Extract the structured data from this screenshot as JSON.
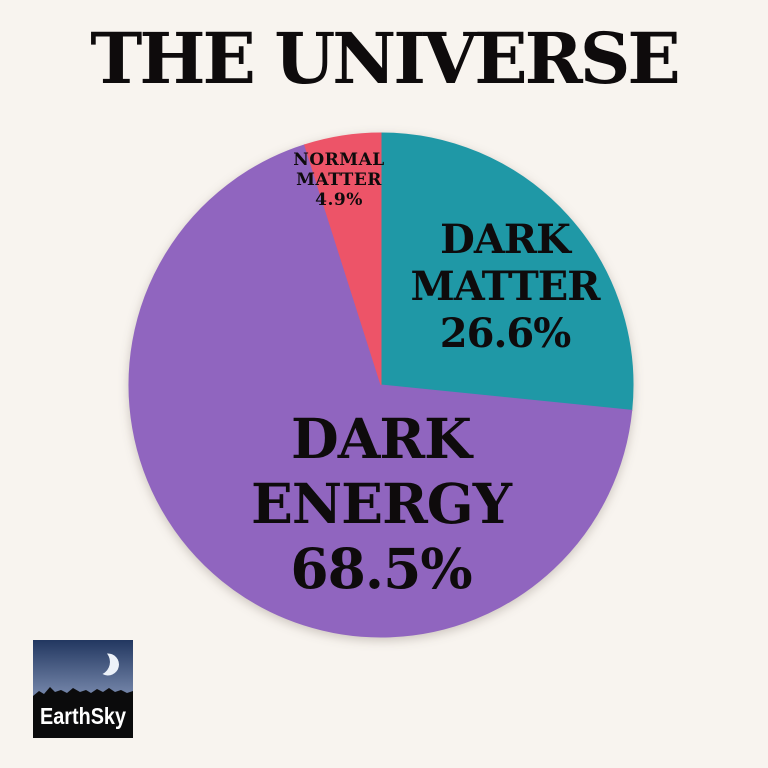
{
  "page": {
    "title": "THE UNIVERSE",
    "background_color": "#F8F4EF",
    "text_color": "#0E0B0C"
  },
  "chart_data": {
    "type": "pie",
    "title": "THE UNIVERSE",
    "direction": "clockwise",
    "start_angle_deg": 0,
    "grid": false,
    "legend_position": "none",
    "slices": [
      {
        "label": "DARK MATTER",
        "label_lines": [
          "DARK",
          "MATTER"
        ],
        "value": 26.6,
        "display_pct": "26.6%",
        "color": "#1F98A6"
      },
      {
        "label": "DARK ENERGY",
        "label_lines": [
          "DARK",
          "ENERGY"
        ],
        "value": 68.5,
        "display_pct": "68.5%",
        "color": "#9065BF"
      },
      {
        "label": "NORMAL MATTER",
        "label_lines": [
          "NORMAL",
          "MATTER"
        ],
        "value": 4.9,
        "display_pct": "4.9%",
        "color": "#ED5468"
      }
    ]
  },
  "logo": {
    "text": "EarthSky",
    "icon": "crescent-moon-icon",
    "sky_top_color": "#223760",
    "sky_mid_color": "#8C9CBE",
    "sky_bottom_color": "#C6CEDD",
    "moon_color": "#EDF2F9",
    "mountain_color": "#0B0B0C",
    "text_color": "#FFFFFF"
  }
}
